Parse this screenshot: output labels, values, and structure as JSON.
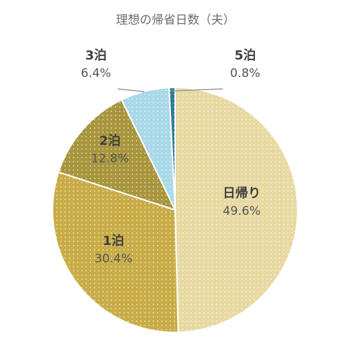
{
  "chart_data": {
    "type": "pie",
    "title": "理想の帰省日数（夫）",
    "slices": [
      {
        "label": "日帰り",
        "value": 49.6,
        "value_label": "49.6%",
        "color": "#e8d9a2"
      },
      {
        "label": "1泊",
        "value": 30.4,
        "value_label": "30.4%",
        "color": "#c9ac46"
      },
      {
        "label": "2泊",
        "value": 12.8,
        "value_label": "12.8%",
        "color": "#a8953d"
      },
      {
        "label": "3泊",
        "value": 6.4,
        "value_label": "6.4%",
        "color": "#a9d8e6"
      },
      {
        "label": "5泊",
        "value": 0.8,
        "value_label": "0.8%",
        "color": "#2f7c9a"
      }
    ]
  }
}
